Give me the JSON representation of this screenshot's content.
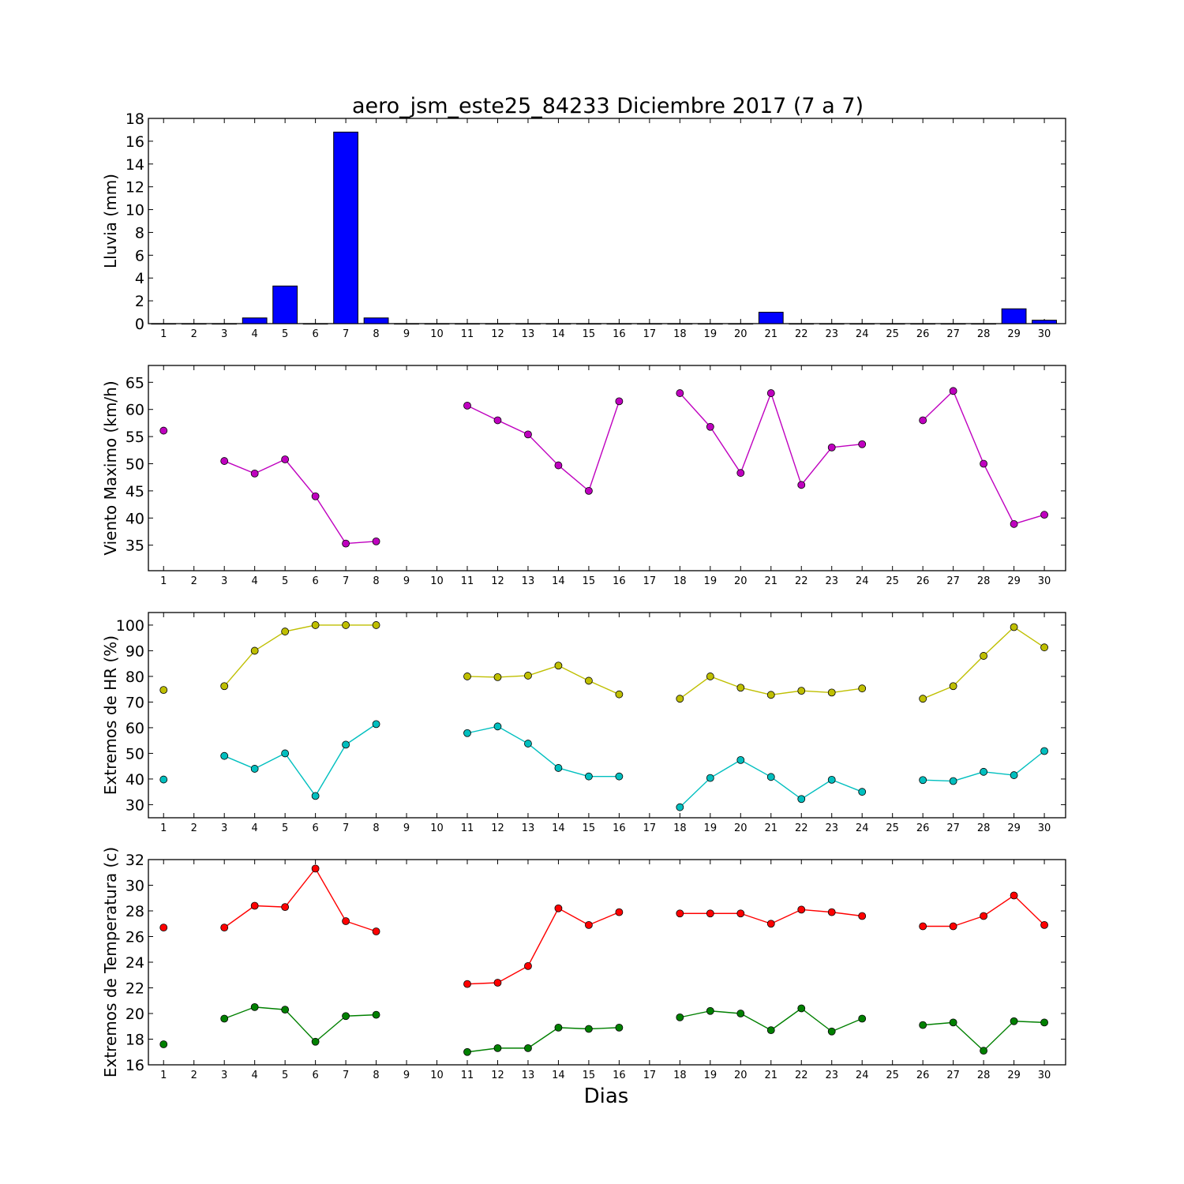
{
  "title": "aero_jsm_este25_84233 Diciembre 2017  (7 a 7)",
  "xlabel": "Dias",
  "x_ticks": [
    "1",
    "2",
    "3",
    "4",
    "5",
    "6",
    "7",
    "8",
    "9",
    "10",
    "11",
    "12",
    "13",
    "14",
    "15",
    "16",
    "17",
    "18",
    "19",
    "20",
    "21",
    "22",
    "23",
    "24",
    "25",
    "26",
    "27",
    "28",
    "29",
    "30"
  ],
  "chart_data": [
    {
      "type": "bar",
      "ylabel": "Lluvia (mm)",
      "ylim": [
        0,
        18
      ],
      "yticks": [
        0,
        2,
        4,
        6,
        8,
        10,
        12,
        14,
        16,
        18
      ],
      "categories": [
        1,
        2,
        3,
        4,
        5,
        6,
        7,
        8,
        9,
        10,
        11,
        12,
        13,
        14,
        15,
        16,
        17,
        18,
        19,
        20,
        21,
        22,
        23,
        24,
        25,
        26,
        27,
        28,
        29,
        30
      ],
      "series": [
        {
          "color": "#0000ff",
          "values": [
            0,
            0,
            0,
            0.5,
            3.3,
            0,
            16.8,
            0.5,
            0,
            0,
            0,
            0,
            0,
            0,
            0,
            0,
            0,
            0,
            0,
            0,
            1.0,
            0,
            0,
            0,
            0,
            0,
            0,
            0,
            1.3,
            0.3
          ]
        }
      ]
    },
    {
      "type": "line",
      "ylabel": "Viento Maximo (km/h)",
      "ylim": [
        30.3,
        68.1
      ],
      "yticks": [
        35,
        40,
        45,
        50,
        55,
        60,
        65
      ],
      "x": [
        1,
        2,
        3,
        4,
        5,
        6,
        7,
        8,
        9,
        10,
        11,
        12,
        13,
        14,
        15,
        16,
        17,
        18,
        19,
        20,
        21,
        22,
        23,
        24,
        25,
        26,
        27,
        28,
        29,
        30
      ],
      "series": [
        {
          "color": "#bf00bf",
          "values": [
            56.1,
            null,
            50.5,
            48.2,
            50.8,
            44.0,
            35.3,
            35.7,
            null,
            null,
            60.7,
            58.0,
            55.4,
            49.7,
            45.0,
            61.5,
            null,
            63.0,
            56.8,
            48.3,
            63.0,
            46.1,
            53.0,
            53.6,
            null,
            58.0,
            63.4,
            50.0,
            38.9,
            40.6
          ]
        }
      ]
    },
    {
      "type": "line",
      "ylabel": "Extremos de HR (%)",
      "ylim": [
        24.9,
        104.9
      ],
      "yticks": [
        30,
        40,
        50,
        60,
        70,
        80,
        90,
        100
      ],
      "x": [
        1,
        2,
        3,
        4,
        5,
        6,
        7,
        8,
        9,
        10,
        11,
        12,
        13,
        14,
        15,
        16,
        17,
        18,
        19,
        20,
        21,
        22,
        23,
        24,
        25,
        26,
        27,
        28,
        29,
        30
      ],
      "series": [
        {
          "color": "#bfbf00",
          "values": [
            74.7,
            null,
            76.2,
            90.0,
            97.5,
            100,
            100,
            100,
            null,
            null,
            80.0,
            79.7,
            80.3,
            84.2,
            78.3,
            73.0,
            null,
            71.3,
            80.0,
            75.6,
            72.8,
            74.4,
            73.7,
            75.3,
            null,
            71.3,
            76.2,
            88.0,
            99.2,
            91.3
          ]
        },
        {
          "color": "#00bfbf",
          "values": [
            39.8,
            null,
            49.0,
            44.0,
            50.0,
            33.4,
            53.4,
            61.4,
            null,
            null,
            57.9,
            60.5,
            53.8,
            44.3,
            41.0,
            41.0,
            null,
            29.0,
            40.4,
            47.4,
            40.8,
            32.2,
            39.7,
            35.0,
            null,
            39.6,
            39.2,
            42.8,
            41.5,
            50.9
          ]
        }
      ]
    },
    {
      "type": "line",
      "ylabel": "Extremos de Temperatura (c)",
      "ylim": [
        16,
        32
      ],
      "yticks": [
        16,
        18,
        20,
        22,
        24,
        26,
        28,
        30,
        32
      ],
      "x": [
        1,
        2,
        3,
        4,
        5,
        6,
        7,
        8,
        9,
        10,
        11,
        12,
        13,
        14,
        15,
        16,
        17,
        18,
        19,
        20,
        21,
        22,
        23,
        24,
        25,
        26,
        27,
        28,
        29,
        30
      ],
      "series": [
        {
          "color": "#ff0000",
          "values": [
            26.7,
            null,
            26.7,
            28.4,
            28.3,
            31.3,
            27.2,
            26.4,
            null,
            null,
            22.3,
            22.4,
            23.7,
            28.2,
            26.9,
            27.9,
            null,
            27.8,
            27.8,
            27.8,
            27.0,
            28.1,
            27.9,
            27.6,
            null,
            26.8,
            26.8,
            27.6,
            29.2,
            26.9
          ]
        },
        {
          "color": "#008000",
          "values": [
            17.6,
            null,
            19.6,
            20.5,
            20.3,
            17.8,
            19.8,
            19.9,
            null,
            null,
            17.0,
            17.3,
            17.3,
            18.9,
            18.8,
            18.9,
            null,
            19.7,
            20.2,
            20.0,
            18.7,
            20.4,
            18.6,
            19.6,
            null,
            19.1,
            19.3,
            17.1,
            19.4,
            19.3
          ]
        }
      ]
    }
  ]
}
